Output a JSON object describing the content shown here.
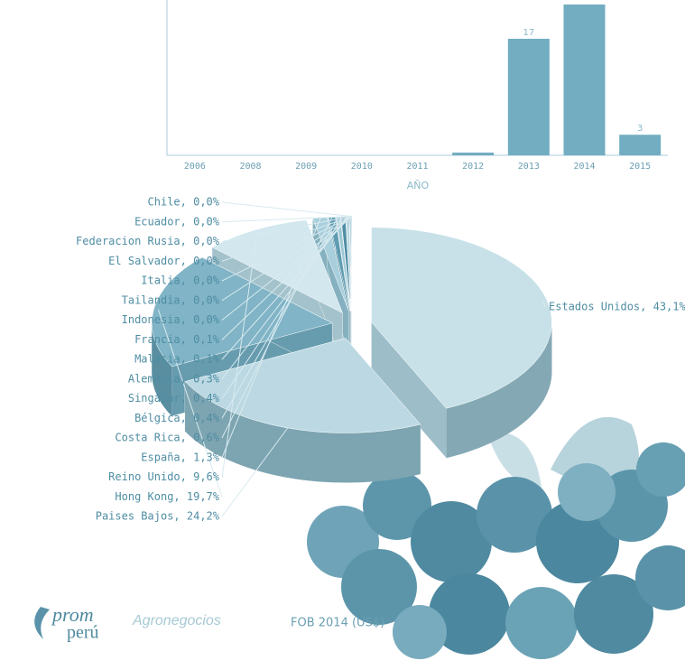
{
  "chart_data": [
    {
      "type": "bar",
      "x_label": "AÑO",
      "categories": [
        "2006",
        "2008",
        "2009",
        "2010",
        "2011",
        "2012",
        "2013",
        "2014",
        "2015"
      ],
      "values": [
        0,
        0,
        0,
        0,
        0,
        0.4,
        17,
        22,
        3
      ],
      "value_labels": [
        null,
        null,
        null,
        null,
        null,
        null,
        "17",
        null,
        "3"
      ],
      "color": "#72adc1",
      "ylim": [
        0,
        22
      ]
    },
    {
      "type": "pie",
      "labels": [
        "Estados Unidos, 43,1%",
        "Paises Bajos, 24,2%",
        "Hong Kong, 19,7%",
        "Reino Unido, 9,6%",
        "España, 1,3%",
        "Costa Rica, 0,6%",
        "Bélgica, 0,4%",
        "Singapur, 0,4%",
        "Alemania, 0,3%",
        "Malasia, 0,1%",
        "Francia, 0,1%",
        "Indonesia, 0,0%",
        "Tailandia, 0,0%",
        "Italia, 0,0%",
        "El Salvador, 0,0%",
        "Federacion Rusia, 0,0%",
        "Ecuador, 0,0%",
        "Chile, 0,0%"
      ],
      "values": [
        43.1,
        24.2,
        19.7,
        9.6,
        1.3,
        0.6,
        0.4,
        0.4,
        0.3,
        0.1,
        0.1,
        0.0,
        0.0,
        0.0,
        0.0,
        0.0,
        0.0,
        0.0
      ],
      "colors": [
        "#c8e1e9",
        "#bcd9e3",
        "#80b4c6",
        "#d2e7ee",
        "#a9cfdc",
        "#5f9cb1",
        "#9cc7d5",
        "#4f8ea5",
        "#b8d8e2",
        "#6fa7ba",
        "#c0dde6",
        "#8abccc",
        "#a4cbd8",
        "#7bb1c3",
        "#b0d3de",
        "#90c0cf",
        "#c6e0e8",
        "#6ba3b7"
      ]
    }
  ],
  "footer": {
    "logo_top": "prom",
    "logo_bottom": "perú",
    "brand": "Agronegocios",
    "caption": "FOB 2014 (US$)"
  }
}
